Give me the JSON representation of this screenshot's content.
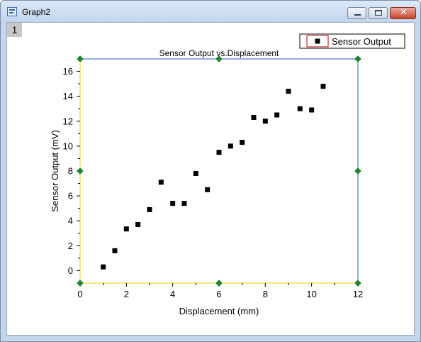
{
  "window": {
    "title": "Graph2",
    "icon": "graph-window-icon",
    "controls": {
      "minimize": "minimize-icon",
      "maximize": "maximize-icon",
      "close_label": "✕"
    }
  },
  "layer": {
    "label": "1"
  },
  "legend": {
    "label": "Sensor Output"
  },
  "colors": {
    "axis_left": "#f2d000",
    "axis_right": "#2a4fd8",
    "handle": "#1a8a2c",
    "marker": "#000000",
    "legend_marker_border": "#c00000"
  },
  "chart_data": {
    "type": "scatter",
    "title": "Sensor Output vs.Displacement",
    "xlabel": "Displacement (mm)",
    "ylabel": "Sensor Output (mV)",
    "xlim": [
      0,
      12
    ],
    "ylim": [
      -1,
      17
    ],
    "xticks": [
      "0",
      "2",
      "4",
      "6",
      "8",
      "10",
      "12"
    ],
    "yticks": [
      "0",
      "2",
      "4",
      "6",
      "8",
      "10",
      "12",
      "14",
      "16"
    ],
    "grid": false,
    "legend_position": "top-right",
    "series": [
      {
        "name": "Sensor Output",
        "x": [
          1.0,
          1.5,
          2.0,
          2.5,
          3.0,
          3.5,
          4.0,
          4.5,
          5.0,
          5.5,
          6.0,
          6.5,
          7.0,
          7.5,
          8.0,
          8.5,
          9.0,
          9.5,
          10.0,
          10.5
        ],
        "y": [
          0.3,
          1.6,
          3.35,
          3.7,
          4.9,
          7.1,
          5.4,
          5.4,
          7.8,
          6.5,
          9.5,
          10.0,
          10.3,
          12.3,
          12.0,
          12.5,
          14.4,
          13.0,
          12.9,
          14.8
        ]
      }
    ]
  }
}
